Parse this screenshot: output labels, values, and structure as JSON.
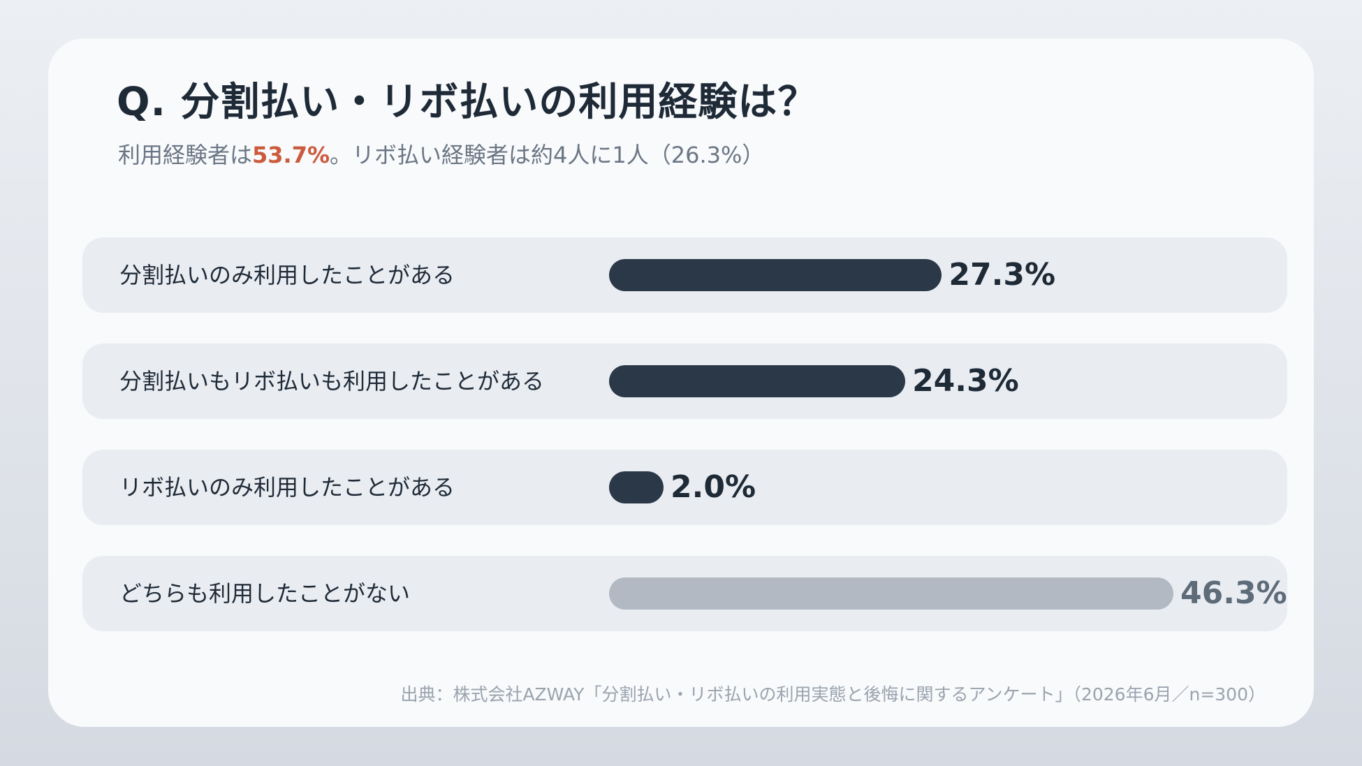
{
  "title": "Q. 分割払い・リボ払いの利用経験は？",
  "subtitle": {
    "prefix": "利用経験者は",
    "highlight": "53.7%",
    "suffix": "。リボ払い経験者は約4人に1人（26.3%）"
  },
  "source": "出典：株式会社AZWAY「分割払い・リボ払いの利用実態と後悔に関するアンケート」（2026年6月／n=300）",
  "colors": {
    "bar_primary": "#2b3848",
    "bar_muted": "#b2b9c3",
    "highlight": "#cc5a3c"
  },
  "chart_data": {
    "type": "bar",
    "orientation": "horizontal",
    "title": "Q. 分割払い・リボ払いの利用経験は？",
    "categories": [
      "分割払いのみ利用したことがある",
      "分割払いもリボ払いも利用したことがある",
      "リボ払いのみ利用したことがある",
      "どちらも利用したことがない"
    ],
    "values": [
      27.3,
      24.3,
      2.0,
      46.3
    ],
    "value_labels": [
      "27.3%",
      "24.3%",
      "2.0%",
      "46.3%"
    ],
    "muted": [
      false,
      false,
      false,
      true
    ],
    "xlim": [
      0,
      46.3
    ],
    "grid": false
  }
}
